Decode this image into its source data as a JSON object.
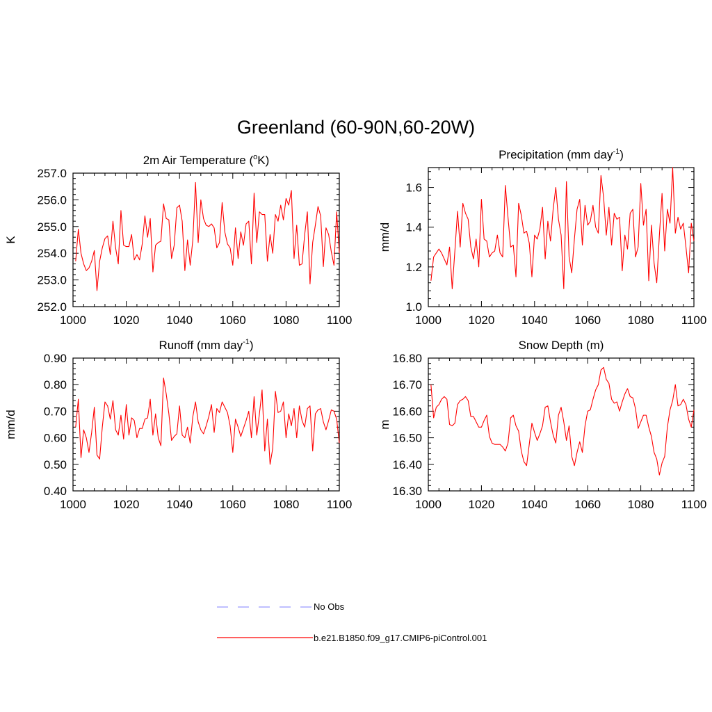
{
  "figure": {
    "title": "Greenland (60-90N,60-20W)",
    "line_color": "#ff0000",
    "obs_color": "#9999ff"
  },
  "legend": {
    "obs_label": "No Obs",
    "model_label": "b.e21.B1850.f09_g17.CMIP6-piControl.001"
  },
  "chart_data": [
    {
      "type": "line",
      "title": "2m Air Temperature (",
      "title_sup": "o",
      "title_after": "K)",
      "ylabel": "K",
      "xlim": [
        1000,
        1100
      ],
      "ylim": [
        252.0,
        257.0
      ],
      "xticks": [
        1000,
        1020,
        1040,
        1060,
        1080,
        1100
      ],
      "yticks": [
        "252.0",
        "253.0",
        "254.0",
        "255.0",
        "256.0",
        "257.0"
      ],
      "x_start": 1001,
      "series": [
        {
          "name": "b.e21.B1850.f09_g17.CMIP6-piControl.001",
          "values": [
            253.7,
            254.9,
            254.0,
            253.6,
            253.35,
            253.45,
            253.7,
            254.1,
            252.6,
            253.7,
            254.2,
            254.55,
            254.65,
            253.95,
            255.2,
            254.2,
            253.6,
            255.6,
            254.3,
            254.25,
            254.25,
            254.7,
            253.75,
            253.95,
            253.75,
            254.35,
            255.4,
            254.6,
            255.3,
            253.3,
            254.3,
            254.4,
            254.45,
            255.85,
            255.3,
            255.25,
            253.8,
            254.3,
            255.7,
            255.8,
            255.2,
            253.35,
            254.5,
            253.55,
            254.5,
            256.65,
            254.4,
            256.0,
            255.3,
            255.05,
            255.0,
            255.1,
            254.95,
            254.2,
            254.4,
            255.9,
            254.8,
            254.35,
            254.2,
            253.55,
            254.95,
            253.8,
            254.8,
            254.3,
            255.1,
            255.2,
            253.6,
            256.25,
            254.4,
            255.55,
            255.45,
            255.45,
            253.7,
            254.7,
            254.0,
            255.45,
            255.2,
            255.8,
            255.25,
            256.05,
            255.8,
            256.35,
            253.8,
            255.05,
            253.55,
            253.6,
            254.7,
            255.55,
            252.85,
            254.4,
            255.05,
            255.75,
            255.4,
            253.5,
            254.95,
            254.7,
            254.05,
            253.55,
            255.55,
            254.0
          ]
        }
      ]
    },
    {
      "type": "line",
      "title": "Precipitation (mm day",
      "title_sup": "-1",
      "title_after": ")",
      "ylabel": "mm/d",
      "xlim": [
        1000,
        1100
      ],
      "ylim": [
        1.0,
        1.7
      ],
      "xticks": [
        1000,
        1020,
        1040,
        1060,
        1080,
        1100
      ],
      "yticks": [
        "1.0",
        "1.2",
        "1.4",
        "1.6"
      ],
      "x_start": 1001,
      "series": [
        {
          "name": "b.e21.B1850.f09_g17.CMIP6-piControl.001",
          "values": [
            1.13,
            1.25,
            1.27,
            1.29,
            1.27,
            1.24,
            1.21,
            1.3,
            1.09,
            1.28,
            1.48,
            1.3,
            1.52,
            1.47,
            1.44,
            1.3,
            1.24,
            1.34,
            1.2,
            1.54,
            1.34,
            1.33,
            1.25,
            1.27,
            1.28,
            1.36,
            1.27,
            1.25,
            1.61,
            1.45,
            1.3,
            1.31,
            1.15,
            1.52,
            1.46,
            1.37,
            1.38,
            1.32,
            1.15,
            1.36,
            1.34,
            1.39,
            1.5,
            1.24,
            1.43,
            1.33,
            1.49,
            1.6,
            1.44,
            1.36,
            1.09,
            1.63,
            1.25,
            1.17,
            1.34,
            1.49,
            1.54,
            1.31,
            1.51,
            1.41,
            1.43,
            1.51,
            1.4,
            1.37,
            1.66,
            1.55,
            1.36,
            1.5,
            1.31,
            1.47,
            1.44,
            1.45,
            1.18,
            1.36,
            1.29,
            1.47,
            1.49,
            1.25,
            1.3,
            1.62,
            1.41,
            1.49,
            1.13,
            1.41,
            1.22,
            1.12,
            1.36,
            1.57,
            1.28,
            1.49,
            1.42,
            1.7,
            1.37,
            1.45,
            1.39,
            1.42,
            1.3,
            1.17,
            1.42,
            1.33
          ]
        }
      ]
    },
    {
      "type": "line",
      "title": "Runoff (mm day",
      "title_sup": "-1",
      "title_after": ")",
      "ylabel": "mm/d",
      "xlim": [
        1000,
        1100
      ],
      "ylim": [
        0.4,
        0.9
      ],
      "xticks": [
        1000,
        1020,
        1040,
        1060,
        1080,
        1100
      ],
      "yticks": [
        "0.40",
        "0.50",
        "0.60",
        "0.70",
        "0.80",
        "0.90"
      ],
      "x_start": 1001,
      "series": [
        {
          "name": "b.e21.B1850.f09_g17.CMIP6-piControl.001",
          "values": [
            0.64,
            0.745,
            0.525,
            0.63,
            0.6,
            0.545,
            0.62,
            0.715,
            0.535,
            0.52,
            0.64,
            0.735,
            0.72,
            0.67,
            0.74,
            0.63,
            0.61,
            0.685,
            0.595,
            0.725,
            0.61,
            0.675,
            0.665,
            0.6,
            0.635,
            0.635,
            0.67,
            0.675,
            0.745,
            0.61,
            0.69,
            0.6,
            0.57,
            0.825,
            0.765,
            0.69,
            0.59,
            0.605,
            0.615,
            0.72,
            0.61,
            0.6,
            0.64,
            0.58,
            0.68,
            0.735,
            0.66,
            0.63,
            0.615,
            0.645,
            0.68,
            0.725,
            0.62,
            0.71,
            0.695,
            0.735,
            0.715,
            0.695,
            0.645,
            0.545,
            0.67,
            0.64,
            0.605,
            0.635,
            0.665,
            0.7,
            0.6,
            0.755,
            0.61,
            0.69,
            0.78,
            0.55,
            0.67,
            0.5,
            0.56,
            0.775,
            0.695,
            0.7,
            0.735,
            0.6,
            0.69,
            0.645,
            0.71,
            0.6,
            0.72,
            0.665,
            0.64,
            0.71,
            0.72,
            0.55,
            0.69,
            0.705,
            0.71,
            0.66,
            0.63,
            0.665,
            0.705,
            0.7,
            0.67,
            0.58
          ]
        }
      ]
    },
    {
      "type": "line",
      "title": "Snow Depth (m)",
      "title_sup": "",
      "title_after": "",
      "ylabel": "m",
      "xlim": [
        1000,
        1100
      ],
      "ylim": [
        16.3,
        16.8
      ],
      "xticks": [
        1000,
        1020,
        1040,
        1060,
        1080,
        1100
      ],
      "yticks": [
        "16.30",
        "16.40",
        "16.50",
        "16.60",
        "16.70",
        "16.80"
      ],
      "x_start": 1001,
      "series": [
        {
          "name": "b.e21.B1850.f09_g17.CMIP6-piControl.001",
          "values": [
            16.7,
            16.575,
            16.615,
            16.625,
            16.645,
            16.655,
            16.645,
            16.55,
            16.545,
            16.555,
            16.625,
            16.64,
            16.645,
            16.655,
            16.64,
            16.58,
            16.58,
            16.56,
            16.54,
            16.54,
            16.565,
            16.585,
            16.505,
            16.48,
            16.475,
            16.475,
            16.475,
            16.465,
            16.45,
            16.48,
            16.575,
            16.585,
            16.545,
            16.525,
            16.45,
            16.41,
            16.395,
            16.475,
            16.555,
            16.52,
            16.49,
            16.515,
            16.545,
            16.615,
            16.62,
            16.56,
            16.51,
            16.48,
            16.585,
            16.615,
            16.56,
            16.49,
            16.545,
            16.43,
            16.395,
            16.445,
            16.485,
            16.445,
            16.545,
            16.6,
            16.605,
            16.645,
            16.68,
            16.7,
            16.755,
            16.765,
            16.72,
            16.705,
            16.645,
            16.63,
            16.635,
            16.6,
            16.635,
            16.665,
            16.685,
            16.655,
            16.65,
            16.61,
            16.535,
            16.56,
            16.585,
            16.585,
            16.54,
            16.505,
            16.445,
            16.42,
            16.36,
            16.405,
            16.43,
            16.54,
            16.605,
            16.64,
            16.7,
            16.62,
            16.625,
            16.645,
            16.625,
            16.57,
            16.54,
            16.605
          ]
        }
      ]
    }
  ]
}
